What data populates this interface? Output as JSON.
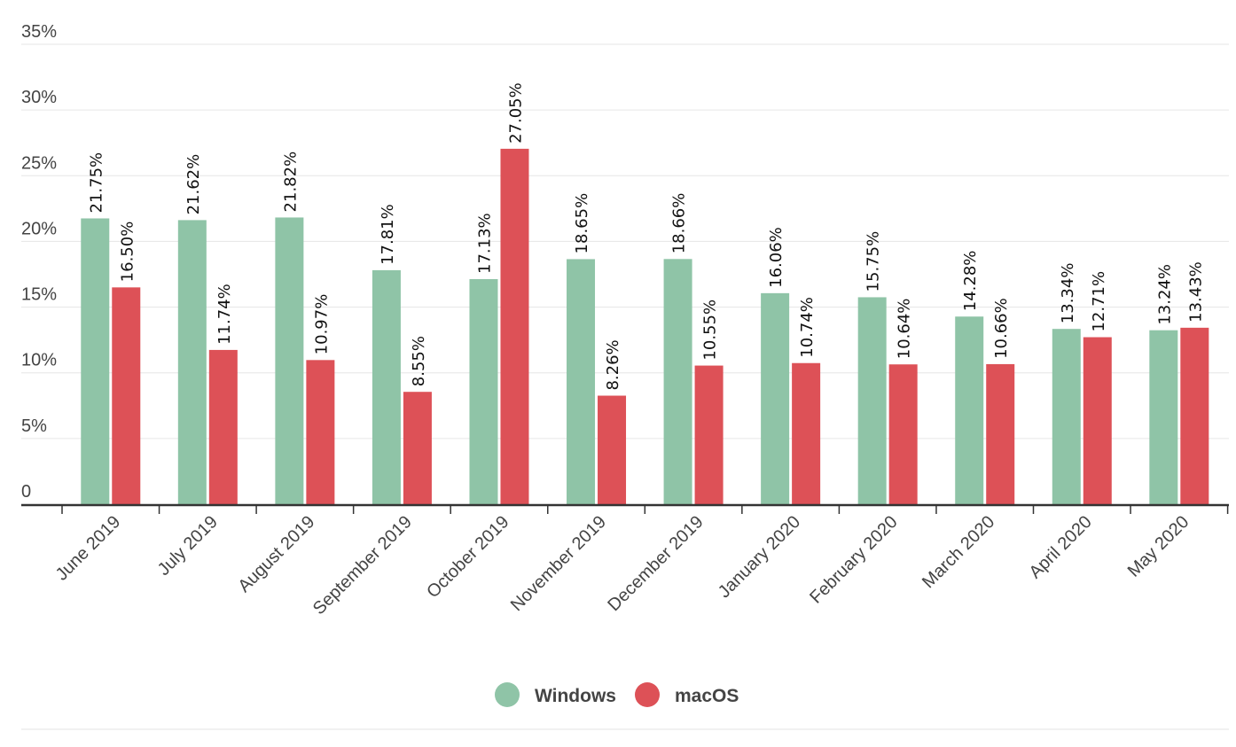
{
  "chart_data": {
    "type": "bar",
    "title": "",
    "xlabel": "",
    "ylabel": "",
    "ylim": [
      0,
      35
    ],
    "yticks": [
      {
        "value": 0,
        "label": "0"
      },
      {
        "value": 5,
        "label": "5%"
      },
      {
        "value": 10,
        "label": "10%"
      },
      {
        "value": 15,
        "label": "15%"
      },
      {
        "value": 20,
        "label": "20%"
      },
      {
        "value": 25,
        "label": "25%"
      },
      {
        "value": 30,
        "label": "30%"
      },
      {
        "value": 35,
        "label": "35%"
      }
    ],
    "grid": true,
    "legend_position": "bottom-center",
    "categories": [
      "June 2019",
      "July 2019",
      "August 2019",
      "September 2019",
      "October 2019",
      "November 2019",
      "December 2019",
      "January 2020",
      "February 2020",
      "March 2020",
      "April 2020",
      "May 2020"
    ],
    "series": [
      {
        "name": "Windows",
        "color": "#8fc4a7",
        "values": [
          21.75,
          21.62,
          21.82,
          17.81,
          17.13,
          18.65,
          18.66,
          16.06,
          15.75,
          14.28,
          13.34,
          13.24
        ],
        "labels": [
          "21.75%",
          "21.62%",
          "21.82%",
          "17.81%",
          "17.13%",
          "18.65%",
          "18.66%",
          "16.06%",
          "15.75%",
          "14.28%",
          "13.34%",
          "13.24%"
        ]
      },
      {
        "name": "macOS",
        "color": "#dd5157",
        "values": [
          16.5,
          11.74,
          10.97,
          8.55,
          27.05,
          8.26,
          10.55,
          10.74,
          10.64,
          10.66,
          12.71,
          13.43
        ],
        "labels": [
          "16.50%",
          "11.74%",
          "10.97%",
          "8.55%",
          "27.05%",
          "8.26%",
          "10.55%",
          "10.74%",
          "10.64%",
          "10.66%",
          "12.71%",
          "13.43%"
        ]
      }
    ]
  }
}
